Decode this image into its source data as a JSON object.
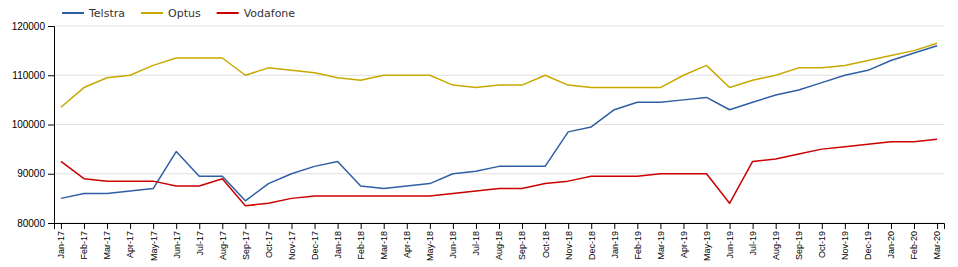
{
  "chart_data": {
    "type": "line",
    "categories": [
      "Jan-17",
      "Feb-17",
      "Mar-17",
      "Apr-17",
      "May-17",
      "Jun-17",
      "Jul-17",
      "Aug-17",
      "Sep-17",
      "Oct-17",
      "Nov-17",
      "Dec-17",
      "Jan-18",
      "Feb-18",
      "Mar-18",
      "Apr-18",
      "May-18",
      "Jun-18",
      "Jul-18",
      "Aug-18",
      "Sep-18",
      "Oct-18",
      "Nov-18",
      "Dec-18",
      "Jan-19",
      "Feb-19",
      "Mar-19",
      "Apr-19",
      "May-19",
      "Jun-19",
      "Jul-19",
      "Aug-19",
      "Sep-19",
      "Oct-19",
      "Nov-19",
      "Dec-19",
      "Jan-20",
      "Feb-20",
      "Mar-20"
    ],
    "series": [
      {
        "name": "Telstra",
        "color": "#2E5FA3",
        "values": [
          85000,
          86000,
          86000,
          86500,
          87000,
          94500,
          89500,
          89500,
          84500,
          88000,
          90000,
          91500,
          92500,
          87500,
          87000,
          87500,
          88000,
          90000,
          90500,
          91500,
          91500,
          91500,
          98500,
          99500,
          103000,
          104500,
          104500,
          105000,
          105500,
          103000,
          104500,
          106000,
          107000,
          108500,
          110000,
          111000,
          113000,
          114500,
          116000
        ]
      },
      {
        "name": "Optus",
        "color": "#C9A800",
        "values": [
          103500,
          107500,
          109500,
          110000,
          112000,
          113500,
          113500,
          113500,
          110000,
          111500,
          111000,
          110500,
          109500,
          109000,
          110000,
          110000,
          110000,
          108000,
          107500,
          108000,
          108000,
          110000,
          108000,
          107500,
          107500,
          107500,
          107500,
          110000,
          112000,
          107500,
          109000,
          110000,
          111500,
          111500,
          112000,
          113000,
          114000,
          115000,
          116500
        ]
      },
      {
        "name": "Vodafone",
        "color": "#CC0000",
        "values": [
          92500,
          89000,
          88500,
          88500,
          88500,
          87500,
          87500,
          89000,
          83500,
          84000,
          85000,
          85500,
          85500,
          85500,
          85500,
          85500,
          85500,
          86000,
          86500,
          87000,
          87000,
          88000,
          88500,
          89500,
          89500,
          89500,
          90000,
          90000,
          90000,
          84000,
          92500,
          93000,
          94000,
          95000,
          95500,
          96000,
          96500,
          96500,
          97000
        ]
      }
    ],
    "ylim": [
      80000,
      120000
    ],
    "yticks": [
      80000,
      90000,
      100000,
      110000,
      120000
    ],
    "grid": true,
    "legend": "upper left"
  }
}
